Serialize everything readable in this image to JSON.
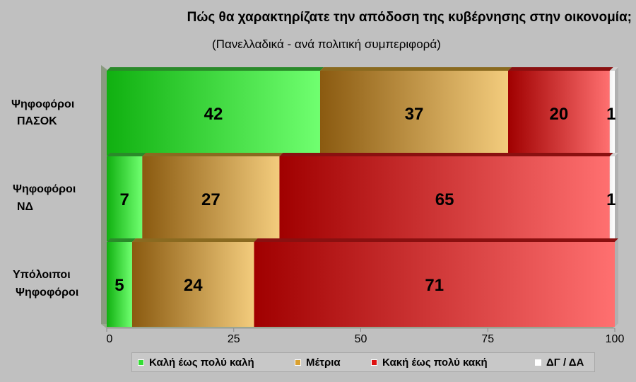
{
  "chart_data": {
    "type": "bar",
    "orientation": "horizontal-stacked",
    "title": "Πώς θα χαρακτηρίζατε την απόδοση της κυβέρνησης στην οικονομία;",
    "subtitle": "(Πανελλαδικά - ανά πολιτική συμπεριφορά)",
    "categories": [
      [
        "Ψηφοφόροι",
        "ΠΑΣΟΚ"
      ],
      [
        "Ψηφοφόροι",
        "ΝΔ"
      ],
      [
        "Υπόλοιποι",
        "Ψηφοφόροι"
      ]
    ],
    "series": [
      {
        "name": "Καλή έως πολύ καλή",
        "values": [
          42,
          7,
          5
        ],
        "labels": [
          "42",
          "7",
          "5"
        ],
        "color": "#33dd33"
      },
      {
        "name": "Μέτρια",
        "values": [
          37,
          27,
          24
        ],
        "labels": [
          "37",
          "27",
          "24"
        ],
        "color": "#d9a030"
      },
      {
        "name": "Κακή έως πολύ κακή",
        "values": [
          20,
          65,
          71
        ],
        "labels": [
          "20",
          "65",
          "71"
        ],
        "color": "#dd1111"
      },
      {
        "name": "ΔΓ / ΔΑ",
        "values": [
          1,
          1,
          0
        ],
        "labels": [
          "1",
          "1",
          ""
        ],
        "color": "#ffffff"
      }
    ],
    "xlim": [
      0,
      100
    ],
    "xticks": [
      "0",
      "25",
      "50",
      "75",
      "100"
    ],
    "grid": false,
    "legend": "bottom"
  }
}
